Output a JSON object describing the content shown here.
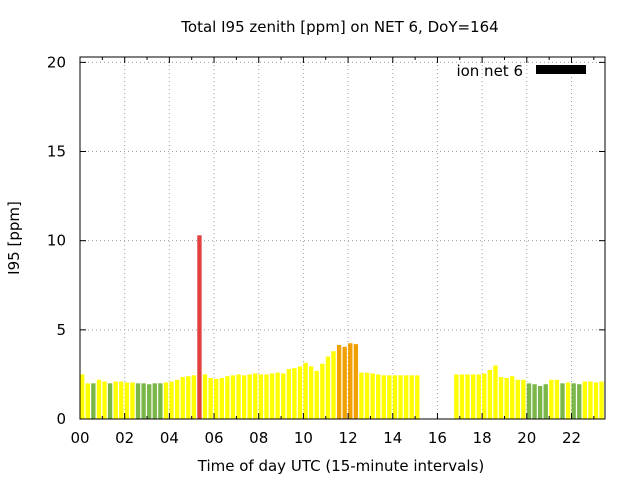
{
  "chart_data": {
    "type": "bar",
    "title": "Total I95 zenith [ppm] on NET 6, DoY=164",
    "xlabel": "Time of day UTC (15-minute intervals)",
    "ylabel": "I95 [ppm]",
    "xlim": [
      0,
      23.5
    ],
    "ylim": [
      0,
      20.3
    ],
    "xticks": [
      "00",
      "02",
      "04",
      "06",
      "08",
      "10",
      "12",
      "14",
      "16",
      "18",
      "20",
      "22"
    ],
    "yticks": [
      "0",
      "5",
      "10",
      "15",
      "20"
    ],
    "grid": true,
    "legend": {
      "position": "top-right",
      "label": "ion net 6",
      "color": "#000000"
    },
    "bar_width_hours": 0.25,
    "colors": {
      "green": "#7ab648",
      "yellow": "#ffff00",
      "orange": "#f0a000",
      "red": "#e04040"
    },
    "bars": [
      {
        "x": 0.0,
        "y": 2.5,
        "c": "yellow"
      },
      {
        "x": 0.25,
        "y": 2.0,
        "c": "yellow"
      },
      {
        "x": 0.5,
        "y": 2.0,
        "c": "green"
      },
      {
        "x": 0.75,
        "y": 2.2,
        "c": "yellow"
      },
      {
        "x": 1.0,
        "y": 2.1,
        "c": "yellow"
      },
      {
        "x": 1.25,
        "y": 2.0,
        "c": "green"
      },
      {
        "x": 1.5,
        "y": 2.1,
        "c": "yellow"
      },
      {
        "x": 1.75,
        "y": 2.1,
        "c": "yellow"
      },
      {
        "x": 2.0,
        "y": 2.05,
        "c": "yellow"
      },
      {
        "x": 2.25,
        "y": 2.05,
        "c": "yellow"
      },
      {
        "x": 2.5,
        "y": 2.0,
        "c": "green"
      },
      {
        "x": 2.75,
        "y": 2.0,
        "c": "green"
      },
      {
        "x": 3.0,
        "y": 1.95,
        "c": "green"
      },
      {
        "x": 3.25,
        "y": 2.0,
        "c": "green"
      },
      {
        "x": 3.5,
        "y": 2.0,
        "c": "green"
      },
      {
        "x": 3.75,
        "y": 2.05,
        "c": "yellow"
      },
      {
        "x": 4.0,
        "y": 2.1,
        "c": "yellow"
      },
      {
        "x": 4.25,
        "y": 2.2,
        "c": "yellow"
      },
      {
        "x": 4.5,
        "y": 2.35,
        "c": "yellow"
      },
      {
        "x": 4.75,
        "y": 2.4,
        "c": "yellow"
      },
      {
        "x": 5.0,
        "y": 2.45,
        "c": "yellow"
      },
      {
        "x": 5.25,
        "y": 10.3,
        "c": "red"
      },
      {
        "x": 5.5,
        "y": 2.5,
        "c": "yellow"
      },
      {
        "x": 5.75,
        "y": 2.3,
        "c": "yellow"
      },
      {
        "x": 6.0,
        "y": 2.25,
        "c": "yellow"
      },
      {
        "x": 6.25,
        "y": 2.3,
        "c": "yellow"
      },
      {
        "x": 6.5,
        "y": 2.4,
        "c": "yellow"
      },
      {
        "x": 6.75,
        "y": 2.45,
        "c": "yellow"
      },
      {
        "x": 7.0,
        "y": 2.5,
        "c": "yellow"
      },
      {
        "x": 7.25,
        "y": 2.45,
        "c": "yellow"
      },
      {
        "x": 7.5,
        "y": 2.5,
        "c": "yellow"
      },
      {
        "x": 7.75,
        "y": 2.55,
        "c": "yellow"
      },
      {
        "x": 8.0,
        "y": 2.5,
        "c": "yellow"
      },
      {
        "x": 8.25,
        "y": 2.5,
        "c": "yellow"
      },
      {
        "x": 8.5,
        "y": 2.55,
        "c": "yellow"
      },
      {
        "x": 8.75,
        "y": 2.6,
        "c": "yellow"
      },
      {
        "x": 9.0,
        "y": 2.55,
        "c": "yellow"
      },
      {
        "x": 9.25,
        "y": 2.8,
        "c": "yellow"
      },
      {
        "x": 9.5,
        "y": 2.85,
        "c": "yellow"
      },
      {
        "x": 9.75,
        "y": 2.95,
        "c": "yellow"
      },
      {
        "x": 10.0,
        "y": 3.15,
        "c": "yellow"
      },
      {
        "x": 10.25,
        "y": 2.95,
        "c": "yellow"
      },
      {
        "x": 10.5,
        "y": 2.7,
        "c": "yellow"
      },
      {
        "x": 10.75,
        "y": 3.1,
        "c": "yellow"
      },
      {
        "x": 11.0,
        "y": 3.5,
        "c": "yellow"
      },
      {
        "x": 11.25,
        "y": 3.8,
        "c": "yellow"
      },
      {
        "x": 11.5,
        "y": 4.15,
        "c": "orange"
      },
      {
        "x": 11.75,
        "y": 4.05,
        "c": "orange"
      },
      {
        "x": 12.0,
        "y": 4.25,
        "c": "orange"
      },
      {
        "x": 12.25,
        "y": 4.2,
        "c": "orange"
      },
      {
        "x": 12.5,
        "y": 2.6,
        "c": "yellow"
      },
      {
        "x": 12.75,
        "y": 2.6,
        "c": "yellow"
      },
      {
        "x": 13.0,
        "y": 2.55,
        "c": "yellow"
      },
      {
        "x": 13.25,
        "y": 2.5,
        "c": "yellow"
      },
      {
        "x": 13.5,
        "y": 2.45,
        "c": "yellow"
      },
      {
        "x": 13.75,
        "y": 2.45,
        "c": "yellow"
      },
      {
        "x": 14.0,
        "y": 2.45,
        "c": "yellow"
      },
      {
        "x": 14.25,
        "y": 2.45,
        "c": "yellow"
      },
      {
        "x": 14.5,
        "y": 2.45,
        "c": "yellow"
      },
      {
        "x": 14.75,
        "y": 2.45,
        "c": "yellow"
      },
      {
        "x": 15.0,
        "y": 2.45,
        "c": "yellow"
      },
      {
        "x": 16.75,
        "y": 2.5,
        "c": "yellow"
      },
      {
        "x": 17.0,
        "y": 2.5,
        "c": "yellow"
      },
      {
        "x": 17.25,
        "y": 2.5,
        "c": "yellow"
      },
      {
        "x": 17.5,
        "y": 2.5,
        "c": "yellow"
      },
      {
        "x": 17.75,
        "y": 2.5,
        "c": "yellow"
      },
      {
        "x": 18.0,
        "y": 2.55,
        "c": "yellow"
      },
      {
        "x": 18.25,
        "y": 2.75,
        "c": "yellow"
      },
      {
        "x": 18.5,
        "y": 3.0,
        "c": "yellow"
      },
      {
        "x": 18.75,
        "y": 2.35,
        "c": "yellow"
      },
      {
        "x": 19.0,
        "y": 2.3,
        "c": "yellow"
      },
      {
        "x": 19.25,
        "y": 2.4,
        "c": "yellow"
      },
      {
        "x": 19.5,
        "y": 2.2,
        "c": "yellow"
      },
      {
        "x": 19.75,
        "y": 2.2,
        "c": "yellow"
      },
      {
        "x": 20.0,
        "y": 2.0,
        "c": "green"
      },
      {
        "x": 20.25,
        "y": 1.95,
        "c": "green"
      },
      {
        "x": 20.5,
        "y": 1.85,
        "c": "green"
      },
      {
        "x": 20.75,
        "y": 1.95,
        "c": "green"
      },
      {
        "x": 21.0,
        "y": 2.2,
        "c": "yellow"
      },
      {
        "x": 21.25,
        "y": 2.2,
        "c": "yellow"
      },
      {
        "x": 21.5,
        "y": 2.0,
        "c": "green"
      },
      {
        "x": 21.75,
        "y": 2.05,
        "c": "yellow"
      },
      {
        "x": 22.0,
        "y": 2.0,
        "c": "green"
      },
      {
        "x": 22.25,
        "y": 1.95,
        "c": "green"
      },
      {
        "x": 22.5,
        "y": 2.1,
        "c": "yellow"
      },
      {
        "x": 22.75,
        "y": 2.1,
        "c": "yellow"
      },
      {
        "x": 23.0,
        "y": 2.05,
        "c": "yellow"
      },
      {
        "x": 23.25,
        "y": 2.1,
        "c": "yellow"
      }
    ]
  }
}
